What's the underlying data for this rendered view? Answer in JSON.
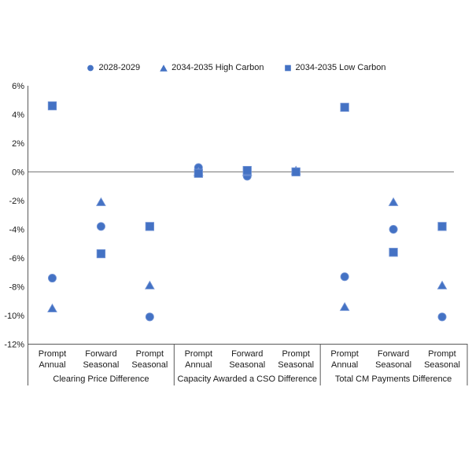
{
  "colors": {
    "marker_fill": "#4472C4",
    "marker_edge": "#7596D6",
    "zero_line": "#8C8C8C",
    "axis_line": "#595959",
    "text": "#1A1A1A",
    "background": "#FFFFFF"
  },
  "legend": {
    "items": [
      {
        "label": "2028-2029",
        "marker": "circle"
      },
      {
        "label": "2034-2035 High Carbon",
        "marker": "triangle"
      },
      {
        "label": "2034-2035 Low Carbon",
        "marker": "square"
      }
    ]
  },
  "chart_data": {
    "type": "scatter",
    "title": "",
    "xlabel": "",
    "ylabel": "",
    "ylim": [
      -12,
      6
    ],
    "ytick_step": 2,
    "yticks": [
      "6%",
      "4%",
      "2%",
      "0%",
      "-2%",
      "-4%",
      "-6%",
      "-8%",
      "-10%",
      "-12%"
    ],
    "grid": "zero-line-only",
    "legend_position": "top",
    "groups": [
      {
        "label": "Clearing Price Difference",
        "categories": [
          "Prompt Annual",
          "Forward Seasonal",
          "Prompt Seasonal"
        ]
      },
      {
        "label": "Capacity Awarded a CSO Difference",
        "categories": [
          "Prompt Annual",
          "Forward Seasonal",
          "Prompt Seasonal"
        ]
      },
      {
        "label": "Total CM Payments Difference",
        "categories": [
          "Prompt Annual",
          "Forward Seasonal",
          "Prompt Seasonal"
        ]
      }
    ],
    "series": [
      {
        "name": "2028-2029",
        "marker": "circle",
        "values_pct": [
          -7.4,
          -3.8,
          -10.1,
          0.3,
          -0.3,
          0,
          -7.3,
          -4.0,
          -10.1
        ]
      },
      {
        "name": "2034-2035 High Carbon",
        "marker": "triangle",
        "values_pct": [
          -9.5,
          -2.1,
          -7.9,
          0,
          0,
          0.1,
          -9.4,
          -2.1,
          -7.9
        ]
      },
      {
        "name": "2034-2035 Low Carbon",
        "marker": "square",
        "values_pct": [
          4.6,
          -5.7,
          -3.8,
          -0.1,
          0.1,
          0,
          4.5,
          -5.6,
          -3.8
        ]
      }
    ]
  }
}
